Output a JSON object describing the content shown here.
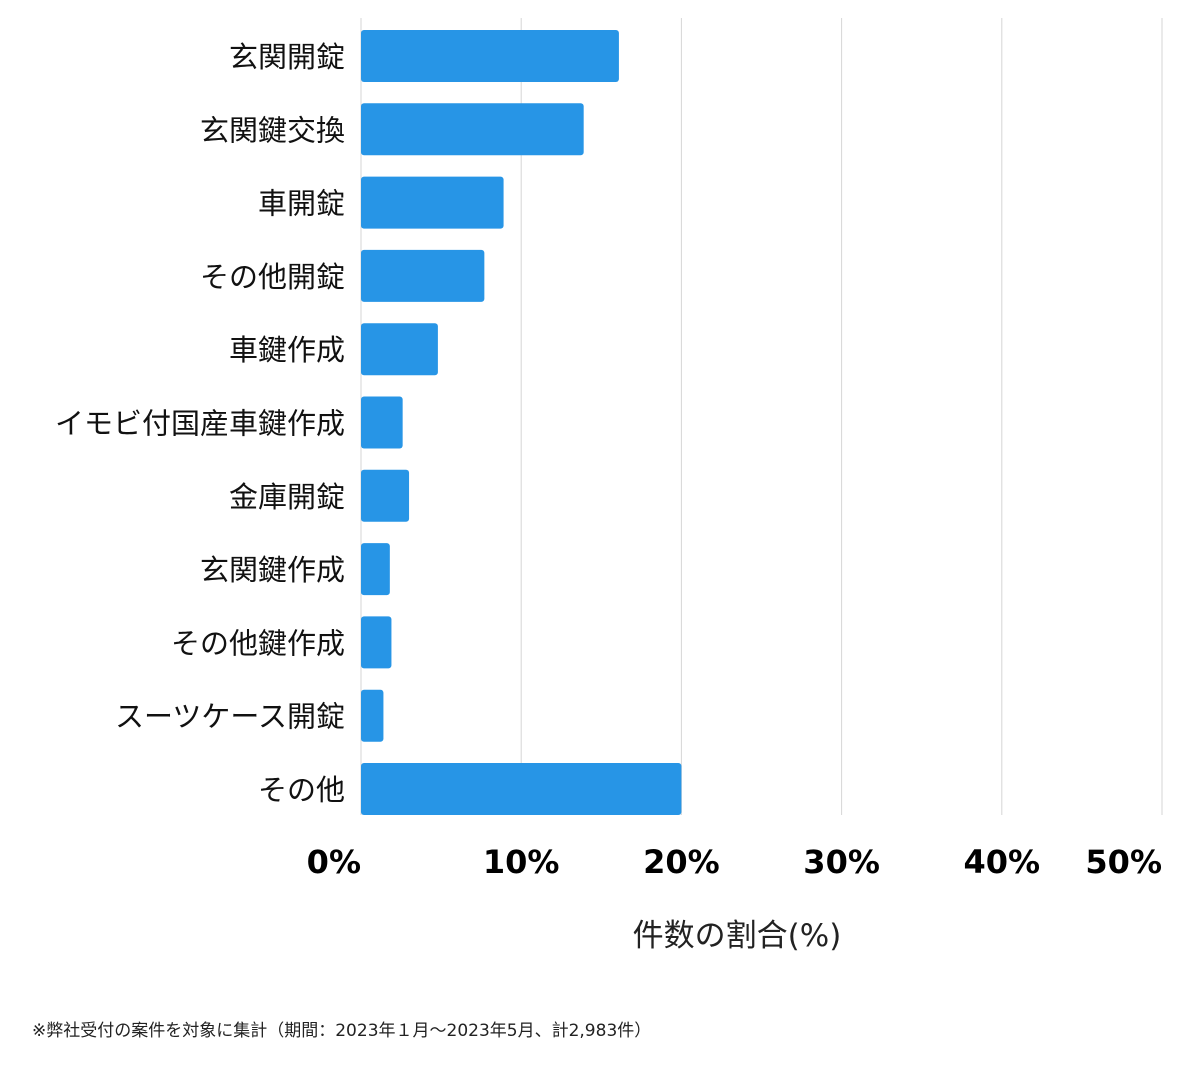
{
  "chart_data": {
    "type": "bar",
    "orientation": "horizontal",
    "categories": [
      "玄関開錠",
      "玄関鍵交換",
      "車開錠",
      "その他開錠",
      "車鍵作成",
      "イモビ付国産車鍵作成",
      "金庫開錠",
      "玄関鍵作成",
      "その他鍵作成",
      "スーツケース開錠",
      "その他"
    ],
    "values": [
      16.1,
      13.9,
      8.9,
      7.7,
      4.8,
      2.6,
      3.0,
      1.8,
      1.9,
      1.4,
      20.0
    ],
    "xlabel": "件数の割合(%)",
    "ylabel": "",
    "xlim": [
      0,
      50
    ],
    "x_ticks": [
      "0%",
      "10%",
      "20%",
      "30%",
      "40%",
      "50%"
    ],
    "grid": "vertical",
    "bar_color": "#2795e6",
    "grid_color": "#d6d6d6"
  },
  "footnote": "※弊社受付の案件を対象に集計（期間：2023年１月〜2023年5月、計2,983件）"
}
